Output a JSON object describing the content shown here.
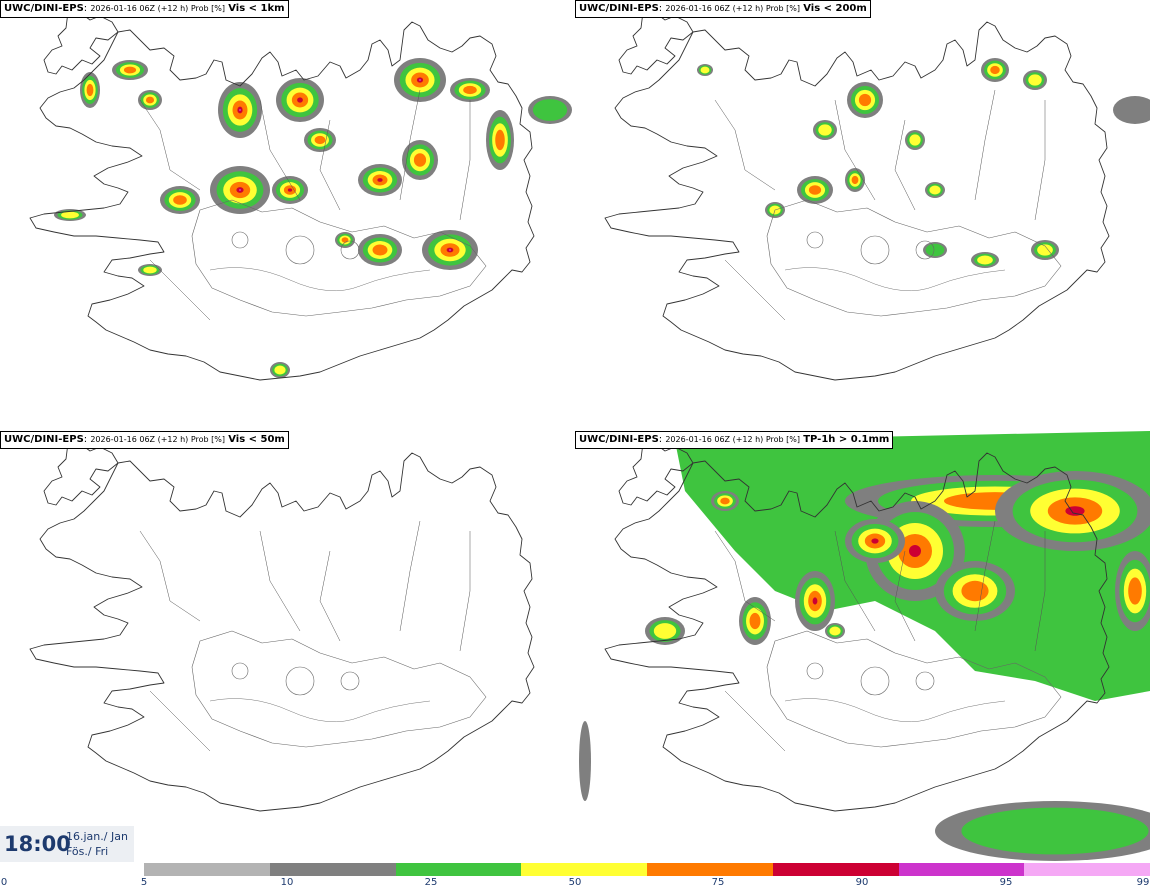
{
  "panels": [
    {
      "model": "UWC/DINI-EPS",
      "meta": "2026-01-16 06Z (+12 h) Prob [%]",
      "variable": "Vis < 1km"
    },
    {
      "model": "UWC/DINI-EPS",
      "meta": "2026-01-16 06Z (+12 h) Prob [%]",
      "variable": "Vis < 200m"
    },
    {
      "model": "UWC/DINI-EPS",
      "meta": "2026-01-16 06Z (+12 h) Prob [%]",
      "variable": "Vis < 50m"
    },
    {
      "model": "UWC/DINI-EPS",
      "meta": "2026-01-16 06Z (+12 h) Prob [%]",
      "variable": "TP-1h > 0.1mm"
    }
  ],
  "valid": {
    "time": "18:00",
    "date_line1": "16.jan./ Jan",
    "date_line2": "Fös./ Fri"
  },
  "colorbar": {
    "ticks": [
      "0",
      "5",
      "10",
      "25",
      "50",
      "75",
      "90",
      "95",
      "99"
    ],
    "colors": [
      "#b3b3b3",
      "#7f7f7f",
      "#3fc43f",
      "#ffff33",
      "#ff7a00",
      "#cc0033",
      "#cc33cc",
      "#f5a8f5"
    ]
  }
}
